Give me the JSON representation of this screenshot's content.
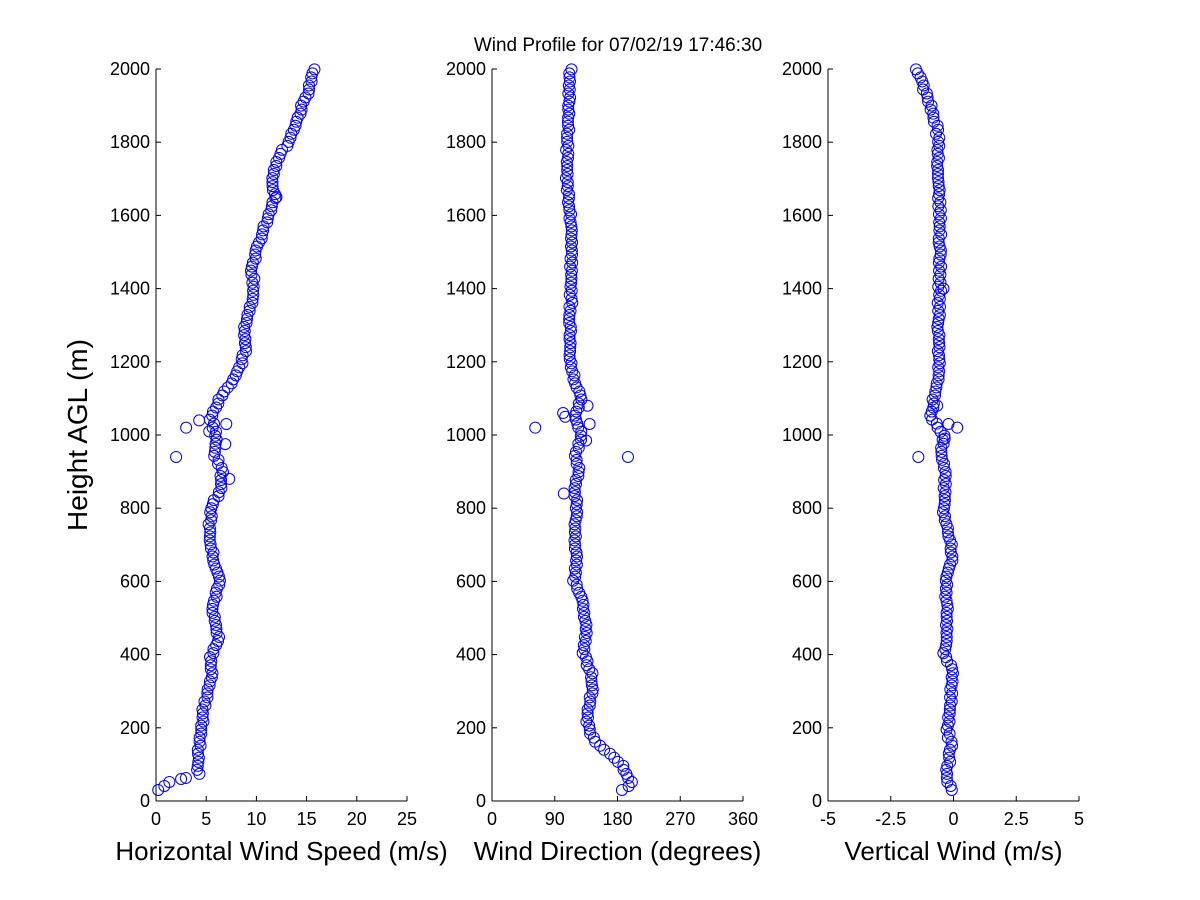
{
  "title": "Wind Profile for  07/02/19 17:46:30",
  "ylabel": "Height AGL (m)",
  "marker_color": "#0000ff",
  "chart_data": [
    {
      "type": "scatter",
      "id": "speed",
      "xlabel": "Horizontal Wind Speed (m/s)",
      "xlim": [
        0,
        25
      ],
      "ylim": [
        0,
        2000
      ],
      "xticks": [
        0,
        5,
        10,
        15,
        20,
        25
      ],
      "xtick_labels": [
        "0",
        "5",
        "10",
        "15",
        "20",
        "25"
      ],
      "yticks": [
        0,
        200,
        400,
        600,
        800,
        1000,
        1200,
        1400,
        1600,
        1800,
        2000
      ],
      "ytick_labels": [
        "0",
        "200",
        "400",
        "600",
        "800",
        "1000",
        "1200",
        "1400",
        "1600",
        "1800",
        "2000"
      ],
      "anchors_height": [
        30,
        50,
        60,
        70,
        100,
        150,
        200,
        260,
        300,
        350,
        400,
        440,
        480,
        520,
        560,
        600,
        650,
        700,
        750,
        800,
        850,
        900,
        950,
        1000,
        1050,
        1100,
        1150,
        1200,
        1250,
        1300,
        1350,
        1400,
        1450,
        1500,
        1550,
        1600,
        1650,
        1700,
        1750,
        1800,
        1850,
        1900,
        1950,
        2000
      ],
      "anchors_value": [
        0.1,
        1.2,
        2.5,
        4.2,
        4.2,
        4.3,
        4.6,
        4.8,
        5.2,
        5.6,
        5.5,
        6.2,
        6.0,
        5.6,
        6.0,
        6.3,
        5.7,
        5.5,
        5.3,
        5.5,
        6.4,
        6.6,
        5.8,
        6.0,
        5.4,
        6.4,
        7.8,
        8.6,
        9.0,
        8.8,
        9.4,
        9.8,
        9.6,
        9.9,
        10.6,
        11.2,
        11.8,
        11.5,
        12.0,
        13.2,
        13.9,
        14.6,
        15.3,
        15.8
      ],
      "extra_points": [
        {
          "x": 2.0,
          "y": 940
        },
        {
          "x": 3.0,
          "y": 1020
        },
        {
          "x": 2.5,
          "y": 60
        },
        {
          "x": 4.3,
          "y": 1040
        },
        {
          "x": 7.0,
          "y": 1030
        },
        {
          "x": 6.9,
          "y": 975
        },
        {
          "x": 5.3,
          "y": 1010
        },
        {
          "x": 7.3,
          "y": 880
        },
        {
          "x": 12.0,
          "y": 1650
        }
      ]
    },
    {
      "type": "scatter",
      "id": "direction",
      "xlabel": "Wind Direction (degrees)",
      "xlim": [
        0,
        360
      ],
      "ylim": [
        0,
        2000
      ],
      "xticks": [
        0,
        90,
        180,
        270,
        360
      ],
      "xtick_labels": [
        "0",
        "90",
        "180",
        "270",
        "360"
      ],
      "yticks": [
        0,
        200,
        400,
        600,
        800,
        1000,
        1200,
        1400,
        1600,
        1800,
        2000
      ],
      "ytick_labels": [
        "0",
        "200",
        "400",
        "600",
        "800",
        "1000",
        "1200",
        "1400",
        "1600",
        "1800",
        "2000"
      ],
      "anchors_height": [
        30,
        50,
        60,
        80,
        100,
        130,
        160,
        190,
        220,
        260,
        300,
        350,
        400,
        450,
        500,
        550,
        600,
        650,
        700,
        750,
        800,
        850,
        900,
        950,
        1000,
        1050,
        1100,
        1150,
        1200,
        1300,
        1400,
        1500,
        1600,
        1650,
        1700,
        1750,
        1800,
        1850,
        1900,
        1950,
        2000
      ],
      "anchors_value": [
        188,
        200,
        198,
        192,
        186,
        168,
        150,
        140,
        136,
        140,
        144,
        142,
        132,
        134,
        134,
        130,
        118,
        122,
        120,
        118,
        122,
        118,
        124,
        120,
        130,
        118,
        128,
        118,
        112,
        112,
        114,
        114,
        112,
        110,
        108,
        108,
        108,
        110,
        110,
        110,
        112
      ],
      "extra_points": [
        {
          "x": 62,
          "y": 1020
        },
        {
          "x": 195,
          "y": 940
        },
        {
          "x": 140,
          "y": 1030
        },
        {
          "x": 102,
          "y": 1060
        },
        {
          "x": 137,
          "y": 1080
        },
        {
          "x": 135,
          "y": 985
        },
        {
          "x": 105,
          "y": 1050
        },
        {
          "x": 103,
          "y": 840
        }
      ]
    },
    {
      "type": "scatter",
      "id": "vertical",
      "xlabel": "Vertical Wind (m/s)",
      "xlim": [
        -5,
        5
      ],
      "ylim": [
        0,
        2000
      ],
      "xticks": [
        -5,
        -2.5,
        0,
        2.5,
        5
      ],
      "xtick_labels": [
        "-5",
        "-2.5",
        "0",
        "2.5",
        "5"
      ],
      "yticks": [
        0,
        200,
        400,
        600,
        800,
        1000,
        1200,
        1400,
        1600,
        1800,
        2000
      ],
      "ytick_labels": [
        "0",
        "200",
        "400",
        "600",
        "800",
        "1000",
        "1200",
        "1400",
        "1600",
        "1800",
        "2000"
      ],
      "anchors_height": [
        30,
        60,
        100,
        150,
        200,
        250,
        300,
        350,
        400,
        450,
        500,
        550,
        600,
        650,
        700,
        750,
        800,
        850,
        900,
        950,
        1000,
        1050,
        1100,
        1150,
        1200,
        1250,
        1300,
        1400,
        1500,
        1600,
        1700,
        1800,
        1850,
        1900,
        1950,
        2000
      ],
      "anchors_value": [
        -0.05,
        -0.3,
        -0.2,
        -0.1,
        -0.25,
        -0.1,
        -0.1,
        0.0,
        -0.35,
        -0.3,
        -0.25,
        -0.3,
        -0.3,
        -0.1,
        -0.05,
        -0.3,
        -0.4,
        -0.35,
        -0.3,
        -0.45,
        -0.4,
        -0.9,
        -0.8,
        -0.6,
        -0.6,
        -0.55,
        -0.6,
        -0.55,
        -0.55,
        -0.55,
        -0.6,
        -0.6,
        -0.7,
        -0.9,
        -1.2,
        -1.5
      ],
      "extra_points": [
        {
          "x": -1.4,
          "y": 940
        },
        {
          "x": 0.15,
          "y": 1020
        },
        {
          "x": -0.65,
          "y": 1080
        },
        {
          "x": -0.35,
          "y": 990
        },
        {
          "x": -0.2,
          "y": 1030
        },
        {
          "x": -0.4,
          "y": 1400
        }
      ]
    }
  ]
}
